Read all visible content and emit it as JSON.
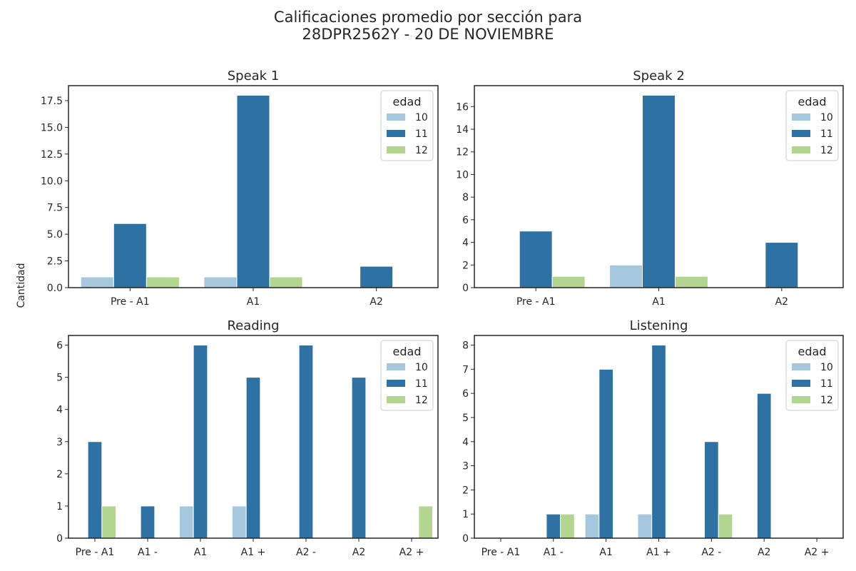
{
  "title_lines": [
    "Calificaciones promedio por sección para",
    "28DPR2562Y - 20 DE NOVIEMBRE"
  ],
  "shared_ylabel": "Cantidad",
  "legend_title": "edad",
  "series_colors": {
    "10": "#a6c8de",
    "11": "#2e72a3",
    "12": "#b2d68f"
  },
  "chart_data": [
    {
      "type": "bar",
      "title": "Speak 1",
      "categories": [
        "Pre - A1",
        "A1",
        "A2"
      ],
      "series": [
        {
          "name": "10",
          "values": [
            1,
            1,
            0
          ]
        },
        {
          "name": "11",
          "values": [
            6,
            18,
            2
          ]
        },
        {
          "name": "12",
          "values": [
            1,
            1,
            0
          ]
        }
      ],
      "ylim": [
        0,
        18.9
      ],
      "yticks": [
        "0.0",
        "2.5",
        "5.0",
        "7.5",
        "10.0",
        "12.5",
        "15.0",
        "17.5"
      ],
      "legend": "top-right"
    },
    {
      "type": "bar",
      "title": "Speak 2",
      "categories": [
        "Pre - A1",
        "A1",
        "A2"
      ],
      "series": [
        {
          "name": "10",
          "values": [
            0,
            2,
            0
          ]
        },
        {
          "name": "11",
          "values": [
            5,
            17,
            4
          ]
        },
        {
          "name": "12",
          "values": [
            1,
            1,
            0
          ]
        }
      ],
      "ylim": [
        0,
        17.85
      ],
      "yticks": [
        "0",
        "2",
        "4",
        "6",
        "8",
        "10",
        "12",
        "14",
        "16"
      ],
      "legend": "top-right"
    },
    {
      "type": "bar",
      "title": "Reading",
      "categories": [
        "Pre - A1",
        "A1 -",
        "A1",
        "A1 +",
        "A2 -",
        "A2",
        "A2 +"
      ],
      "series": [
        {
          "name": "10",
          "values": [
            0,
            0,
            1,
            1,
            0,
            0,
            0
          ]
        },
        {
          "name": "11",
          "values": [
            3,
            1,
            6,
            5,
            6,
            5,
            0
          ]
        },
        {
          "name": "12",
          "values": [
            1,
            0,
            0,
            0,
            0,
            0,
            1
          ]
        }
      ],
      "ylim": [
        0,
        6.3
      ],
      "yticks": [
        "0",
        "1",
        "2",
        "3",
        "4",
        "5",
        "6"
      ],
      "legend": "top-right"
    },
    {
      "type": "bar",
      "title": "Listening",
      "categories": [
        "Pre - A1",
        "A1 -",
        "A1",
        "A1 +",
        "A2 -",
        "A2",
        "A2 +"
      ],
      "series": [
        {
          "name": "10",
          "values": [
            0,
            0,
            1,
            1,
            0,
            0,
            0
          ]
        },
        {
          "name": "11",
          "values": [
            0,
            1,
            7,
            8,
            4,
            6,
            0
          ]
        },
        {
          "name": "12",
          "values": [
            0,
            1,
            0,
            0,
            1,
            0,
            0
          ]
        }
      ],
      "ylim": [
        0,
        8.4
      ],
      "yticks": [
        "0",
        "1",
        "2",
        "3",
        "4",
        "5",
        "6",
        "7",
        "8"
      ],
      "legend": "top-right"
    }
  ]
}
